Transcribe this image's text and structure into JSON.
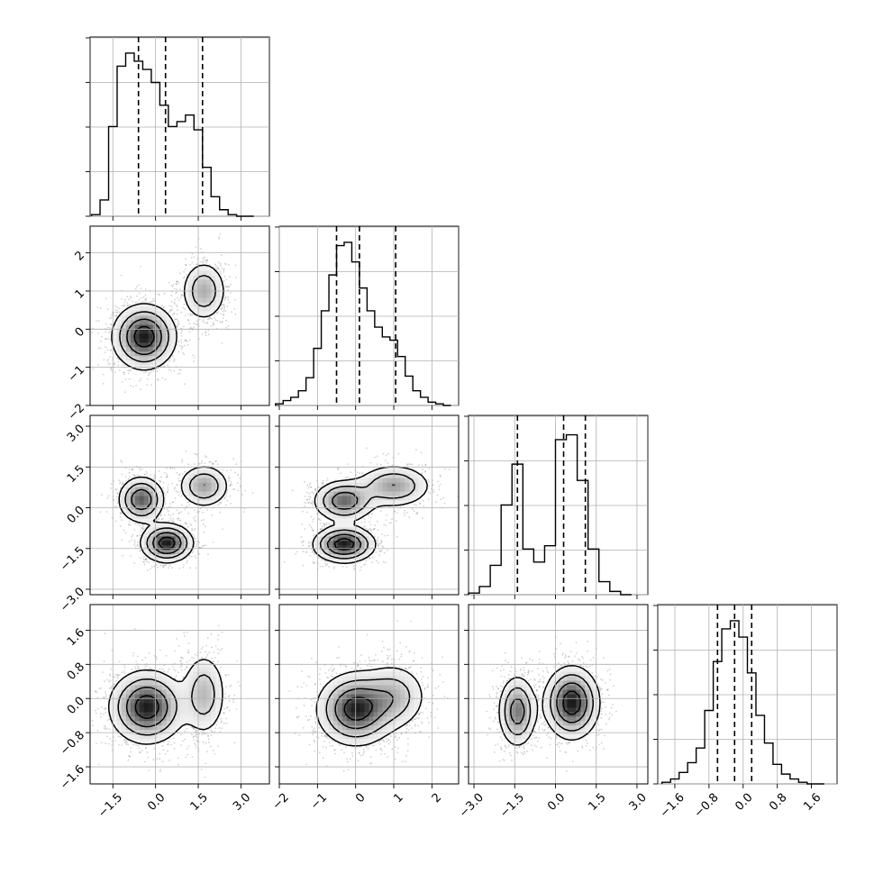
{
  "chart_data": {
    "type": "corner",
    "parameters": [
      {
        "ticks": [
          -1.5,
          0.0,
          1.5,
          3.0
        ],
        "tick_labels": [
          "−1.5",
          "0.0",
          "1.5",
          "3.0"
        ],
        "range": [
          -2.3,
          4.0
        ],
        "quantiles": [
          -0.6,
          0.35,
          1.65
        ],
        "hist_x_bins": [
          -2.1,
          -1.8,
          -1.5,
          -1.2,
          -0.9,
          -0.6,
          -0.3,
          0.0,
          0.3,
          0.6,
          0.9,
          1.2,
          1.5,
          1.8,
          2.1,
          2.4,
          2.7,
          3.0,
          3.3
        ],
        "hist_counts": [
          0.01,
          0.1,
          0.55,
          0.92,
          1.0,
          0.95,
          0.9,
          0.82,
          0.68,
          0.55,
          0.58,
          0.62,
          0.53,
          0.3,
          0.12,
          0.04,
          0.01,
          0.0,
          0.0
        ],
        "blobs": [
          {
            "mean": -0.5,
            "sd": 0.45
          },
          {
            "mean": 1.7,
            "sd": 0.4
          }
        ]
      },
      {
        "ticks": [
          -2,
          -1,
          0,
          1,
          2
        ],
        "tick_labels": [
          "−2",
          "−1",
          "0",
          "1",
          "2"
        ],
        "range": [
          -2.0,
          2.7
        ],
        "quantiles": [
          -0.5,
          0.1,
          1.05
        ],
        "hist_x_bins": [
          -2.0,
          -1.8,
          -1.6,
          -1.4,
          -1.2,
          -1.0,
          -0.8,
          -0.6,
          -0.4,
          -0.2,
          0.0,
          0.2,
          0.4,
          0.6,
          0.8,
          1.0,
          1.2,
          1.4,
          1.6,
          1.8,
          2.0,
          2.2,
          2.4
        ],
        "hist_counts": [
          0.01,
          0.03,
          0.05,
          0.09,
          0.17,
          0.35,
          0.58,
          0.8,
          0.98,
          1.0,
          0.88,
          0.72,
          0.58,
          0.48,
          0.42,
          0.4,
          0.3,
          0.18,
          0.09,
          0.05,
          0.02,
          0.01,
          0.0
        ],
        "blobs": [
          {
            "mean": -0.2,
            "sd": 0.45
          },
          {
            "mean": 1.0,
            "sd": 0.4
          }
        ]
      },
      {
        "ticks": [
          -3.0,
          -1.5,
          0.0,
          1.5,
          3.0
        ],
        "tick_labels": [
          "−3.0",
          "−1.5",
          "0.0",
          "1.5",
          "3.0"
        ],
        "range": [
          -3.2,
          3.4
        ],
        "quantiles": [
          -1.4,
          0.3,
          1.1
        ],
        "hist_x_bins": [
          -3.0,
          -2.6,
          -2.2,
          -1.8,
          -1.4,
          -1.0,
          -0.6,
          -0.2,
          0.2,
          0.6,
          1.0,
          1.4,
          1.8,
          2.2,
          2.6
        ],
        "hist_counts": [
          0.01,
          0.05,
          0.18,
          0.55,
          0.8,
          0.28,
          0.2,
          0.3,
          0.95,
          0.98,
          0.7,
          0.28,
          0.08,
          0.02,
          0.0
        ],
        "blobs": [
          {
            "mean": -1.4,
            "sd": 0.35
          },
          {
            "mean": 0.8,
            "sd": 0.45
          }
        ]
      },
      {
        "ticks": [
          -1.6,
          -0.8,
          0.0,
          0.8,
          1.6
        ],
        "tick_labels": [
          "−1.6",
          "−0.8",
          "0.0",
          "0.8",
          "1.6"
        ],
        "range": [
          -2.0,
          2.2
        ],
        "quantiles": [
          -0.6,
          -0.2,
          0.2
        ],
        "hist_x_bins": [
          -1.8,
          -1.6,
          -1.4,
          -1.2,
          -1.0,
          -0.8,
          -0.6,
          -0.4,
          -0.2,
          0.0,
          0.2,
          0.4,
          0.6,
          0.8,
          1.0,
          1.2,
          1.4,
          1.6,
          1.8
        ],
        "hist_counts": [
          0.01,
          0.03,
          0.07,
          0.13,
          0.22,
          0.45,
          0.75,
          0.95,
          1.0,
          0.9,
          0.68,
          0.42,
          0.25,
          0.12,
          0.06,
          0.03,
          0.01,
          0.0,
          0.0
        ],
        "blobs": [
          {
            "mean": -0.2,
            "sd": 0.4
          }
        ]
      }
    ],
    "histogram_y_tick_count": 5,
    "pairs": [
      {
        "row": 1,
        "col": 0,
        "clusters": [
          {
            "mx": -0.4,
            "my": -0.2,
            "sx": 0.55,
            "sy": 0.42,
            "w": 1.0
          },
          {
            "mx": 1.7,
            "my": 1.0,
            "sx": 0.4,
            "sy": 0.4,
            "w": 0.5
          }
        ]
      },
      {
        "row": 2,
        "col": 0,
        "clusters": [
          {
            "mx": -0.5,
            "my": 0.3,
            "sx": 0.4,
            "sy": 0.42,
            "w": 0.8
          },
          {
            "mx": 0.4,
            "my": -1.3,
            "sx": 0.45,
            "sy": 0.35,
            "w": 1.0
          },
          {
            "mx": 1.7,
            "my": 0.8,
            "sx": 0.45,
            "sy": 0.4,
            "w": 0.55
          }
        ]
      },
      {
        "row": 2,
        "col": 1,
        "clusters": [
          {
            "mx": -0.3,
            "my": 0.25,
            "sx": 0.4,
            "sy": 0.38,
            "w": 0.75
          },
          {
            "mx": -0.3,
            "my": -1.35,
            "sx": 0.4,
            "sy": 0.33,
            "w": 1.0
          },
          {
            "mx": 1.0,
            "my": 0.8,
            "sx": 0.5,
            "sy": 0.4,
            "w": 0.55
          }
        ]
      },
      {
        "row": 3,
        "col": 0,
        "clusters": [
          {
            "mx": -0.3,
            "my": -0.2,
            "sx": 0.65,
            "sy": 0.42,
            "w": 1.0
          },
          {
            "mx": 1.7,
            "my": 0.1,
            "sx": 0.4,
            "sy": 0.5,
            "w": 0.45
          }
        ]
      },
      {
        "row": 3,
        "col": 1,
        "clusters": [
          {
            "mx": 0.0,
            "my": -0.25,
            "sx": 0.5,
            "sy": 0.42,
            "w": 1.0
          },
          {
            "mx": 1.0,
            "my": 0.05,
            "sx": 0.45,
            "sy": 0.4,
            "w": 0.45
          }
        ]
      },
      {
        "row": 3,
        "col": 2,
        "clusters": [
          {
            "mx": -1.4,
            "my": -0.3,
            "sx": 0.35,
            "sy": 0.42,
            "w": 0.7
          },
          {
            "mx": 0.6,
            "my": -0.1,
            "sx": 0.5,
            "sy": 0.42,
            "w": 1.0
          }
        ]
      }
    ],
    "contour_levels": [
      0.12,
      0.3,
      0.55,
      0.82
    ],
    "grid": true,
    "colors": {
      "axes": "#000000",
      "grid": "#b0b0b0",
      "density_dark": "#1a1a1a",
      "density_light": "#f2f2f2",
      "scatter": "#7f7f7f"
    }
  }
}
